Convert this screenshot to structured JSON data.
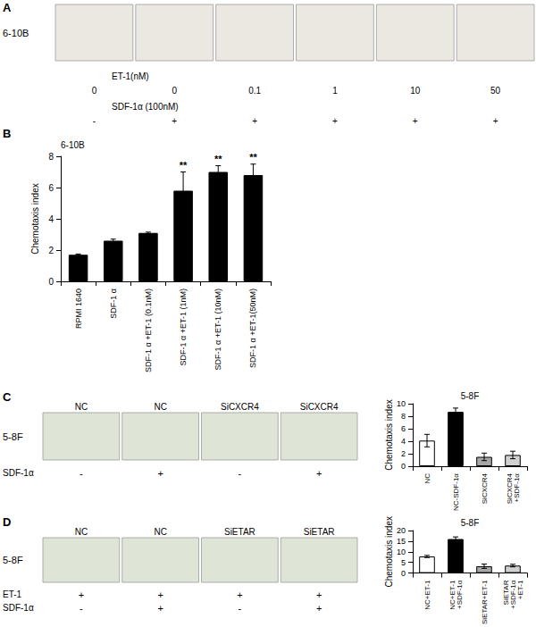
{
  "chart_data": [
    {
      "type": "bar",
      "panel_label": "B",
      "title": "6-10B",
      "y_label": "Chemotaxis index",
      "categories": [
        "RPMI 1640",
        "SDF-1 α",
        "SDF-1 α +ET-1 (0.1nM)",
        "SDF-1 α +ET-1 (1nM)",
        "SDF-1 α +ET-1 (10nM)",
        "SDF-1 α +ET-1(50nM)"
      ],
      "values": [
        1.7,
        2.6,
        3.1,
        5.8,
        7.0,
        6.8
      ],
      "errors": [
        0.05,
        0.1,
        0.05,
        1.2,
        0.4,
        0.7
      ],
      "annotations": [
        null,
        null,
        null,
        "**",
        "**",
        "**"
      ],
      "colors": [
        "#000000",
        "#000000",
        "#000000",
        "#000000",
        "#000000",
        "#000000"
      ],
      "ylim": [
        0,
        8
      ],
      "yticks": [
        0,
        2,
        4,
        6,
        8
      ],
      "grid": false
    },
    {
      "type": "bar",
      "title": "5-8F",
      "y_label": "Chemotaxis index",
      "categories": [
        "NC",
        "NC-SDF-1α",
        "SiCXCR4",
        "SiCXCR4 +SDF-1α"
      ],
      "values": [
        4.1,
        8.7,
        1.5,
        1.8
      ],
      "errors": [
        1.0,
        0.6,
        0.6,
        0.6
      ],
      "colors": [
        "#ffffff",
        "#000000",
        "#a6a6a6",
        "#d0d0d0"
      ],
      "ylim": [
        0,
        10
      ],
      "yticks": [
        0,
        2,
        4,
        6,
        8,
        10
      ],
      "grid": false
    },
    {
      "type": "bar",
      "title": "5-8F",
      "y_label": "Chemotaxis index",
      "categories": [
        "NC+ET-1",
        "NC+ET-1 +SDF-1α",
        "SiETAR+ET-1",
        "SiETAR +SDF-1α +ET-1"
      ],
      "values": [
        7.8,
        16,
        3.2,
        3.5
      ],
      "errors": [
        0.5,
        1.0,
        1.0,
        0.6
      ],
      "colors": [
        "#ffffff",
        "#000000",
        "#a6a6a6",
        "#d0d0d0"
      ],
      "ylim": [
        0,
        20
      ],
      "yticks": [
        0,
        5,
        10,
        15,
        20
      ],
      "grid": false
    }
  ],
  "image_panels": [
    {
      "panel_label": "A",
      "cell_line": "6-10B",
      "rows": [
        {
          "label": "ET-1(nM)",
          "values": [
            "0",
            "0",
            "0.1",
            "1",
            "10",
            "50"
          ]
        },
        {
          "label": "SDF-1α (100nM)",
          "values": [
            "-",
            "+",
            "+",
            "+",
            "+",
            "+"
          ]
        }
      ]
    },
    {
      "panel_label": "C",
      "cell_line": "5-8F",
      "column_headers": [
        "NC",
        "NC",
        "SiCXCR4",
        "SiCXCR4"
      ],
      "rows": [
        {
          "label": "SDF-1α",
          "values": [
            "-",
            "+",
            "-",
            "+"
          ]
        }
      ]
    },
    {
      "panel_label": "D",
      "cell_line": "5-8F",
      "column_headers": [
        "NC",
        "NC",
        "SiETAR",
        "SiETAR"
      ],
      "rows": [
        {
          "label": "ET-1",
          "values": [
            "+",
            "+",
            "+",
            "+"
          ]
        },
        {
          "label": "SDF-1α",
          "values": [
            "-",
            "+",
            "-",
            "+"
          ]
        }
      ]
    }
  ]
}
